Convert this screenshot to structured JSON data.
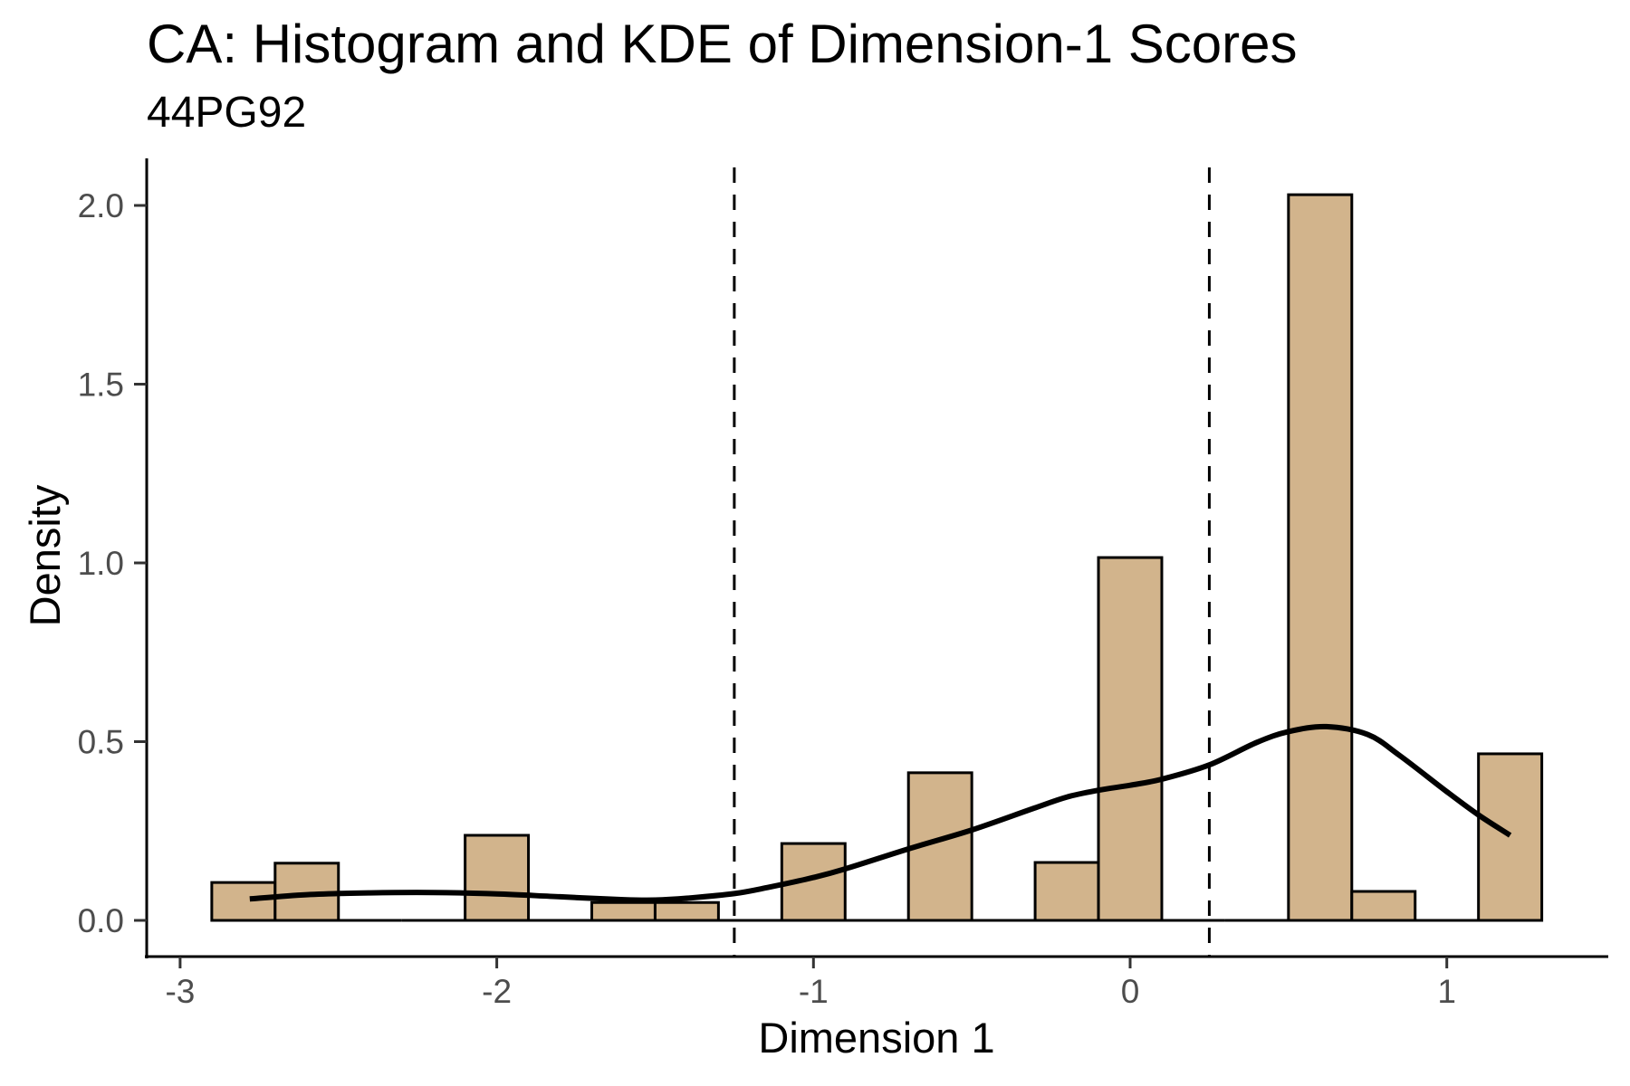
{
  "chart_data": {
    "type": "histogram+kde",
    "title": "CA: Histogram and KDE of Dimension-1 Scores",
    "subtitle": "44PG92",
    "xlabel": "Dimension 1",
    "ylabel": "Density",
    "xlim": [
      -3.08,
      1.52
    ],
    "ylim": [
      -0.1,
      2.13
    ],
    "x_ticks": [
      -3,
      -2,
      -1,
      0,
      1
    ],
    "x_tick_labels": [
      "-3",
      "-2",
      "-1",
      "0",
      "1"
    ],
    "y_ticks": [
      0.0,
      0.5,
      1.0,
      1.5,
      2.0
    ],
    "y_tick_labels": [
      "0.0",
      "0.5",
      "1.0",
      "1.5",
      "2.0"
    ],
    "grid": false,
    "bin_width": 0.2,
    "histogram": {
      "bin_centers": [
        -2.8,
        -2.6,
        -2.4,
        -2.2,
        -2.0,
        -1.8,
        -1.6,
        -1.4,
        -1.2,
        -1.0,
        -0.8,
        -0.6,
        -0.4,
        -0.2,
        0.0,
        0.2,
        0.4,
        0.6,
        0.8,
        1.0,
        1.2
      ],
      "density": [
        0.106,
        0.16,
        0.0,
        0.0,
        0.238,
        0.0,
        0.05,
        0.05,
        0.0,
        0.215,
        0.0,
        0.413,
        0.0,
        0.162,
        1.015,
        0.0,
        0.0,
        2.03,
        0.081,
        0.0,
        0.466
      ],
      "fill_color": "#D2B48C",
      "edge_color": "#000000"
    },
    "kde": {
      "x": [
        -2.78,
        -2.6,
        -2.4,
        -2.2,
        -2.0,
        -1.8,
        -1.6,
        -1.5,
        -1.4,
        -1.25,
        -1.14,
        -1.0,
        -0.9,
        -0.7,
        -0.5,
        -0.3,
        -0.2,
        -0.1,
        0.0,
        0.1,
        0.25,
        0.4,
        0.5,
        0.62,
        0.75,
        0.85,
        1.0,
        1.1,
        1.2
      ],
      "y": [
        0.06,
        0.072,
        0.077,
        0.078,
        0.074,
        0.066,
        0.058,
        0.057,
        0.062,
        0.075,
        0.093,
        0.12,
        0.144,
        0.2,
        0.253,
        0.315,
        0.345,
        0.364,
        0.378,
        0.395,
        0.435,
        0.498,
        0.528,
        0.542,
        0.52,
        0.462,
        0.36,
        0.295,
        0.238
      ],
      "color": "#000000"
    },
    "vlines": {
      "x": [
        -1.25,
        0.25
      ],
      "style": "dashed",
      "color": "#000000"
    }
  }
}
